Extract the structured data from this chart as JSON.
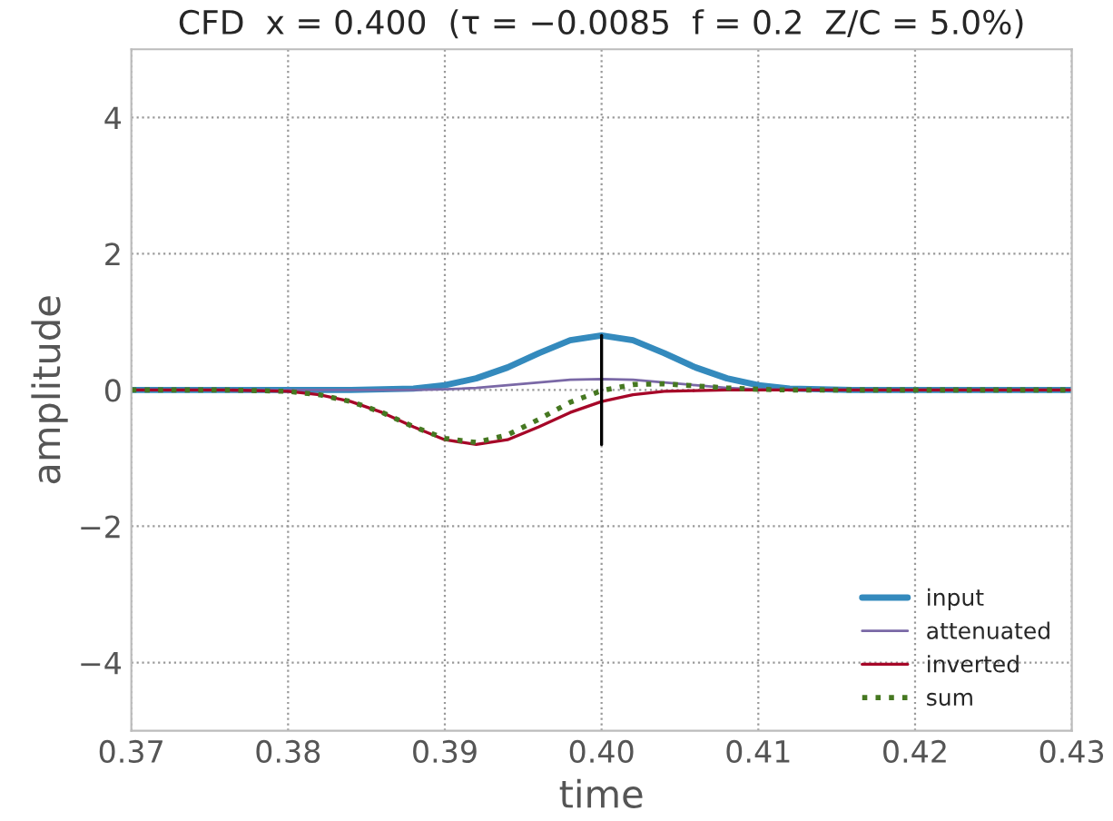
{
  "chart_data": {
    "type": "line",
    "title": "CFD  x = 0.400  (τ = −0.0085  f = 0.2  Z/C = 5.0%)",
    "xlabel": "time",
    "ylabel": "amplitude",
    "x": [
      0.37,
      0.372,
      0.374,
      0.376,
      0.378,
      0.38,
      0.382,
      0.384,
      0.386,
      0.388,
      0.39,
      0.392,
      0.394,
      0.396,
      0.398,
      0.4,
      0.402,
      0.404,
      0.406,
      0.408,
      0.41,
      0.412,
      0.414,
      0.416,
      0.418,
      0.42,
      0.422,
      0.424,
      0.426,
      0.428,
      0.43
    ],
    "series": [
      {
        "name": "input",
        "color": "#348abd",
        "line_style": "solid",
        "values": [
          0,
          0,
          0,
          0,
          0,
          0,
          0,
          0.0,
          0.01,
          0.02,
          0.07,
          0.17,
          0.33,
          0.54,
          0.73,
          0.8,
          0.73,
          0.54,
          0.33,
          0.17,
          0.07,
          0.02,
          0.01,
          0.0,
          0,
          0,
          0,
          0,
          0,
          0,
          0
        ]
      },
      {
        "name": "attenuated",
        "color": "#7a68a6",
        "line_style": "solid",
        "values": [
          0,
          0,
          0,
          0,
          0,
          0,
          0,
          0,
          0.0,
          0.0,
          0.01,
          0.03,
          0.07,
          0.11,
          0.15,
          0.16,
          0.15,
          0.11,
          0.07,
          0.03,
          0.01,
          0.0,
          0.0,
          0,
          0,
          0,
          0,
          0,
          0,
          0,
          0
        ]
      },
      {
        "name": "inverted",
        "color": "#a60628",
        "line_style": "solid",
        "values": [
          0,
          0,
          0,
          0.0,
          -0.01,
          -0.02,
          -0.07,
          -0.17,
          -0.33,
          -0.54,
          -0.73,
          -0.8,
          -0.73,
          -0.54,
          -0.33,
          -0.17,
          -0.07,
          -0.02,
          -0.01,
          0.0,
          0,
          0,
          0,
          0,
          0,
          0,
          0,
          0,
          0,
          0,
          0
        ]
      },
      {
        "name": "sum",
        "color": "#467821",
        "line_style": "dotted",
        "values": [
          0,
          0,
          0,
          0.0,
          -0.01,
          -0.02,
          -0.07,
          -0.17,
          -0.33,
          -0.54,
          -0.71,
          -0.77,
          -0.66,
          -0.43,
          -0.18,
          -0.01,
          0.08,
          0.09,
          0.06,
          0.03,
          0.01,
          0.0,
          0.0,
          0,
          0,
          0,
          0,
          0,
          0,
          0,
          0
        ]
      },
      {
        "color": "#000000",
        "line_style": "solid",
        "x": [
          0.4,
          0.4
        ],
        "values": [
          -0.8,
          0.8
        ]
      }
    ],
    "xlim": [
      0.37,
      0.43
    ],
    "xticks": [
      0.37,
      0.38,
      0.39,
      {
        "value": 0.4,
        "label": "0.40"
      },
      0.41,
      0.42,
      0.43
    ],
    "ylim": [
      -5,
      5
    ],
    "yticks": [
      {
        "value": -4,
        "label": "−4"
      },
      {
        "value": -2,
        "label": "−2"
      },
      0,
      2,
      4
    ],
    "grid": true,
    "legend": "bottom right",
    "marker": "none"
  }
}
